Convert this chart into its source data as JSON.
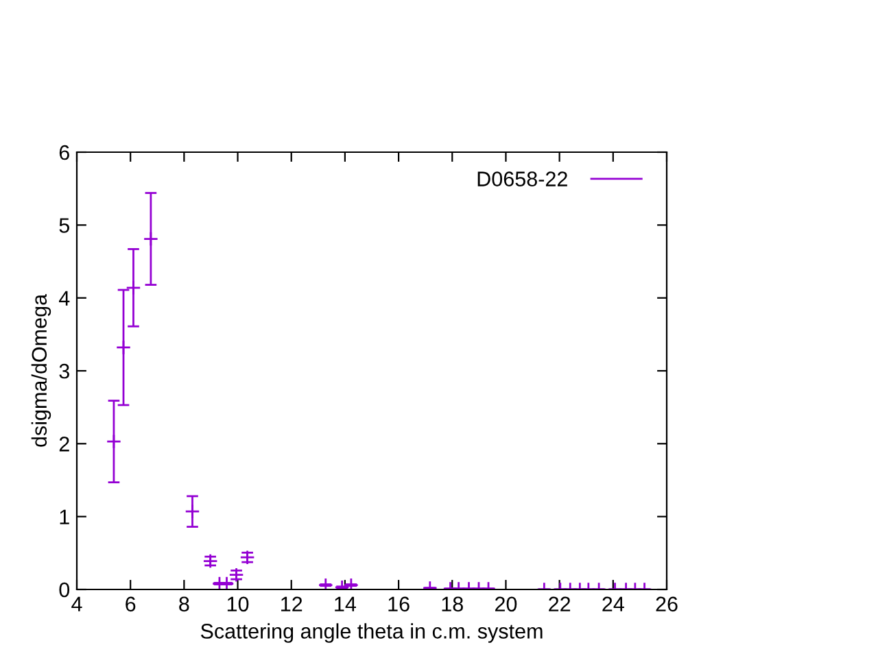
{
  "chart_data": {
    "type": "scatter",
    "xlabel": "Scattering angle theta in c.m. system",
    "ylabel": "dsigma/dOmega",
    "x": [
      5.38,
      5.74,
      6.11,
      6.76,
      8.31,
      8.98,
      9.32,
      9.59,
      9.95,
      10.36,
      13.28,
      13.89,
      14.23,
      17.17,
      17.93,
      18.24,
      18.62,
      18.99,
      19.35,
      21.43,
      22.03,
      22.4,
      22.76,
      23.08,
      23.47,
      24.07,
      24.48,
      24.82,
      25.17
    ],
    "series": [
      {
        "name": "D0658-22",
        "color": "#9400d3",
        "values": [
          2.03,
          3.32,
          4.14,
          4.81,
          1.07,
          0.39,
          0.08,
          0.08,
          0.2,
          0.44,
          0.06,
          0.03,
          0.06,
          0.02,
          0.01,
          0.01,
          0.01,
          0.01,
          0.01,
          0,
          0,
          0,
          0,
          0,
          0,
          0,
          0,
          0,
          0
        ],
        "errors": [
          0.56,
          0.79,
          0.53,
          0.63,
          0.21,
          0.06,
          0.01,
          0.01,
          0.06,
          0.065,
          0.01,
          0.01,
          0.01,
          null,
          null,
          null,
          null,
          null,
          null,
          null,
          null,
          null,
          null,
          null,
          null,
          null,
          null,
          null,
          null
        ]
      }
    ],
    "xlim": [
      4,
      26
    ],
    "xticks": [
      4,
      6,
      8,
      10,
      12,
      14,
      16,
      18,
      20,
      22,
      24,
      26
    ],
    "ylim": [
      0,
      6
    ],
    "yticks": [
      0,
      1,
      2,
      3,
      4,
      5,
      6
    ],
    "marker": "cross",
    "legend": "top right",
    "grid": false
  }
}
